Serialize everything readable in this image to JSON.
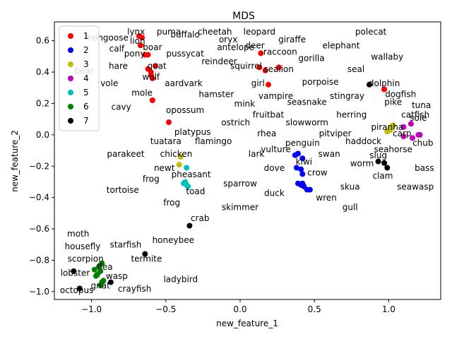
{
  "chart_data": {
    "type": "scatter",
    "title": "MDS",
    "xlabel": "new_feature_1",
    "ylabel": "new_feature_2",
    "xlim": [
      -1.25,
      1.35
    ],
    "ylim": [
      -1.05,
      0.72
    ],
    "xticks": [
      -1.0,
      -0.5,
      0.0,
      0.5,
      1.0
    ],
    "yticks": [
      -1.0,
      -0.8,
      -0.6,
      -0.4,
      -0.2,
      0.0,
      0.2,
      0.4,
      0.6
    ],
    "xtick_labels": [
      "−1.0",
      "−0.5",
      "0.0",
      "0.5",
      "1.0"
    ],
    "ytick_labels": [
      "−1.0",
      "−0.8",
      "−0.6",
      "−0.4",
      "−0.2",
      "0.0",
      "0.2",
      "0.4",
      "0.6"
    ],
    "grid": false,
    "legend_position": "top-left",
    "series": [
      {
        "name": "1",
        "color": "#ff0000",
        "points": [
          [
            -0.68,
            0.63
          ],
          [
            -0.67,
            0.57
          ],
          [
            -0.62,
            0.51
          ],
          [
            -0.57,
            0.44
          ],
          [
            -0.62,
            0.42
          ],
          [
            -0.6,
            0.4
          ],
          [
            -0.59,
            0.36
          ],
          [
            -0.59,
            0.22
          ],
          [
            -0.48,
            0.08
          ],
          [
            0.13,
            0.43
          ],
          [
            0.14,
            0.52
          ],
          [
            0.17,
            0.41
          ],
          [
            0.19,
            0.32
          ],
          [
            0.26,
            0.43
          ],
          [
            0.97,
            0.29
          ],
          [
            -0.66,
            0.62
          ],
          [
            -0.6,
            0.38
          ],
          [
            -0.64,
            0.51
          ]
        ]
      },
      {
        "name": "2",
        "color": "#0000ff",
        "points": [
          [
            0.37,
            -0.13
          ],
          [
            0.39,
            -0.12
          ],
          [
            0.42,
            -0.15
          ],
          [
            0.38,
            -0.21
          ],
          [
            0.41,
            -0.22
          ],
          [
            0.42,
            -0.25
          ],
          [
            0.39,
            -0.31
          ],
          [
            0.41,
            -0.32
          ],
          [
            0.43,
            -0.33
          ],
          [
            0.45,
            -0.35
          ],
          [
            0.47,
            -0.35
          ],
          [
            0.42,
            -0.31
          ]
        ]
      },
      {
        "name": "3",
        "color": "#bfbf00",
        "points": [
          [
            0.99,
            0.02
          ],
          [
            1.01,
            0.03
          ],
          [
            1.02,
            0.05
          ],
          [
            1.03,
            0.06
          ],
          [
            -0.41,
            -0.19
          ],
          [
            -0.4,
            -0.14
          ],
          [
            1.01,
            0.04
          ]
        ]
      },
      {
        "name": "4",
        "color": "#bf00bf",
        "points": [
          [
            1.1,
            -0.01
          ],
          [
            1.1,
            0.05
          ],
          [
            1.15,
            0.07
          ],
          [
            1.16,
            -0.02
          ],
          [
            1.2,
            0.0
          ],
          [
            1.21,
            0.0
          ]
        ]
      },
      {
        "name": "5",
        "color": "#00bfbf",
        "points": [
          [
            -0.37,
            -0.3
          ],
          [
            -0.36,
            -0.32
          ],
          [
            -0.35,
            -0.33
          ],
          [
            -0.36,
            -0.21
          ],
          [
            -0.38,
            -0.31
          ]
        ]
      },
      {
        "name": "6",
        "color": "#008000",
        "points": [
          [
            -0.98,
            -0.86
          ],
          [
            -0.97,
            -0.9
          ],
          [
            -0.95,
            -0.84
          ],
          [
            -0.93,
            -0.82
          ],
          [
            -0.94,
            -0.87
          ],
          [
            -0.93,
            -0.94
          ],
          [
            -0.94,
            -0.96
          ],
          [
            -0.96,
            -0.89
          ],
          [
            -0.92,
            -0.93
          ]
        ]
      },
      {
        "name": "7",
        "color": "#000000",
        "points": [
          [
            -1.12,
            -0.87
          ],
          [
            -1.08,
            -0.98
          ],
          [
            -0.87,
            -0.94
          ],
          [
            -0.64,
            -0.76
          ],
          [
            -0.34,
            -0.58
          ],
          [
            0.87,
            0.32
          ],
          [
            0.93,
            -0.17
          ],
          [
            0.97,
            -0.18
          ],
          [
            0.99,
            -0.21
          ]
        ]
      }
    ],
    "annotations": [
      {
        "text": "mongoose",
        "x": -0.9,
        "y": 0.6
      },
      {
        "text": "lynx",
        "x": -0.7,
        "y": 0.64
      },
      {
        "text": "puma",
        "x": -0.48,
        "y": 0.64
      },
      {
        "text": "buffalo",
        "x": -0.37,
        "y": 0.62
      },
      {
        "text": "cheetah",
        "x": -0.17,
        "y": 0.64
      },
      {
        "text": "leopard",
        "x": 0.13,
        "y": 0.64
      },
      {
        "text": "polecat",
        "x": 0.88,
        "y": 0.64
      },
      {
        "text": "lion",
        "x": -0.69,
        "y": 0.58
      },
      {
        "text": "oryx",
        "x": -0.08,
        "y": 0.59
      },
      {
        "text": "giraffe",
        "x": 0.35,
        "y": 0.59
      },
      {
        "text": "calf",
        "x": -0.83,
        "y": 0.53
      },
      {
        "text": "boar",
        "x": -0.59,
        "y": 0.54
      },
      {
        "text": "deer",
        "x": 0.1,
        "y": 0.55
      },
      {
        "text": "antelope",
        "x": -0.03,
        "y": 0.54
      },
      {
        "text": "elephant",
        "x": 0.68,
        "y": 0.55
      },
      {
        "text": "pony",
        "x": -0.71,
        "y": 0.5
      },
      {
        "text": "pussycat",
        "x": -0.37,
        "y": 0.5
      },
      {
        "text": "raccoon",
        "x": 0.27,
        "y": 0.51
      },
      {
        "text": "wallaby",
        "x": 0.99,
        "y": 0.48
      },
      {
        "text": "reindeer",
        "x": -0.14,
        "y": 0.45
      },
      {
        "text": "gorilla",
        "x": 0.48,
        "y": 0.47
      },
      {
        "text": "hare",
        "x": -0.82,
        "y": 0.42
      },
      {
        "text": "goat",
        "x": -0.56,
        "y": 0.42
      },
      {
        "text": "squirrel",
        "x": 0.04,
        "y": 0.42
      },
      {
        "text": "seal",
        "x": 0.78,
        "y": 0.4
      },
      {
        "text": "sealion",
        "x": 0.26,
        "y": 0.4
      },
      {
        "text": "bear",
        "x": -1.05,
        "y": 0.39
      },
      {
        "text": "wolf",
        "x": -0.6,
        "y": 0.35
      },
      {
        "text": "vole",
        "x": -0.88,
        "y": 0.31
      },
      {
        "text": "aardvark",
        "x": -0.38,
        "y": 0.31
      },
      {
        "text": "porpoise",
        "x": 0.54,
        "y": 0.32
      },
      {
        "text": "dolphin",
        "x": 0.97,
        "y": 0.31
      },
      {
        "text": "girl",
        "x": 0.12,
        "y": 0.31
      },
      {
        "text": "mole",
        "x": -0.66,
        "y": 0.25
      },
      {
        "text": "hamster",
        "x": -0.16,
        "y": 0.24
      },
      {
        "text": "vampire",
        "x": 0.24,
        "y": 0.23
      },
      {
        "text": "stingray",
        "x": 0.72,
        "y": 0.23
      },
      {
        "text": "dogfish",
        "x": 1.08,
        "y": 0.24
      },
      {
        "text": "cavy",
        "x": -0.8,
        "y": 0.16
      },
      {
        "text": "mink",
        "x": 0.03,
        "y": 0.18
      },
      {
        "text": "seasnake",
        "x": 0.45,
        "y": 0.19
      },
      {
        "text": "pike",
        "x": 1.03,
        "y": 0.19
      },
      {
        "text": "tuna",
        "x": 1.22,
        "y": 0.17
      },
      {
        "text": "opossum",
        "x": -0.37,
        "y": 0.14
      },
      {
        "text": "fruitbat",
        "x": 0.19,
        "y": 0.11
      },
      {
        "text": "herring",
        "x": 0.75,
        "y": 0.11
      },
      {
        "text": "catfish",
        "x": 1.18,
        "y": 0.11
      },
      {
        "text": "sole",
        "x": 1.2,
        "y": 0.09
      },
      {
        "text": "ostrich",
        "x": -0.03,
        "y": 0.06
      },
      {
        "text": "slowworm",
        "x": 0.45,
        "y": 0.06
      },
      {
        "text": "piranha",
        "x": 0.99,
        "y": 0.03
      },
      {
        "text": "platypus",
        "x": -0.32,
        "y": 0.0
      },
      {
        "text": "rhea",
        "x": 0.18,
        "y": -0.01
      },
      {
        "text": "pitviper",
        "x": 0.64,
        "y": -0.01
      },
      {
        "text": "tuatara",
        "x": -0.5,
        "y": -0.06
      },
      {
        "text": "flamingo",
        "x": -0.18,
        "y": -0.06
      },
      {
        "text": "penguin",
        "x": 0.42,
        "y": -0.07
      },
      {
        "text": "haddock",
        "x": 0.83,
        "y": -0.06
      },
      {
        "text": "carp",
        "x": 1.09,
        "y": -0.01
      },
      {
        "text": "chub",
        "x": 1.23,
        "y": -0.07
      },
      {
        "text": "vulture",
        "x": 0.24,
        "y": -0.11
      },
      {
        "text": "seahorse",
        "x": 1.03,
        "y": -0.11
      },
      {
        "text": "parakeet",
        "x": -0.77,
        "y": -0.14
      },
      {
        "text": "chicken",
        "x": -0.43,
        "y": -0.14
      },
      {
        "text": "lark",
        "x": 0.11,
        "y": -0.14
      },
      {
        "text": "swan",
        "x": 0.6,
        "y": -0.14
      },
      {
        "text": "slug",
        "x": 0.93,
        "y": -0.15
      },
      {
        "text": "kiwi",
        "x": 0.43,
        "y": -0.19
      },
      {
        "text": "worm",
        "x": 0.82,
        "y": -0.2
      },
      {
        "text": "newt",
        "x": -0.51,
        "y": -0.23
      },
      {
        "text": "dove",
        "x": 0.23,
        "y": -0.23
      },
      {
        "text": "bass",
        "x": 1.24,
        "y": -0.23
      },
      {
        "text": "pheasant",
        "x": -0.33,
        "y": -0.27
      },
      {
        "text": "crow",
        "x": 0.52,
        "y": -0.26
      },
      {
        "text": "clam",
        "x": 0.96,
        "y": -0.28
      },
      {
        "text": "frog",
        "x": -0.6,
        "y": -0.3
      },
      {
        "text": "sparrow",
        "x": 0.0,
        "y": -0.33
      },
      {
        "text": "skua",
        "x": 0.74,
        "y": -0.35
      },
      {
        "text": "seawasp",
        "x": 1.18,
        "y": -0.35
      },
      {
        "text": "tortoise",
        "x": -0.79,
        "y": -0.37
      },
      {
        "text": "toad",
        "x": -0.3,
        "y": -0.38
      },
      {
        "text": "duck",
        "x": 0.23,
        "y": -0.39
      },
      {
        "text": "wren",
        "x": 0.58,
        "y": -0.42
      },
      {
        "text": "frog",
        "x": -0.46,
        "y": -0.45
      },
      {
        "text": "skimmer",
        "x": 0.0,
        "y": -0.48
      },
      {
        "text": "gull",
        "x": 0.74,
        "y": -0.48
      },
      {
        "text": "crab",
        "x": -0.27,
        "y": -0.55
      },
      {
        "text": "moth",
        "x": -1.09,
        "y": -0.65
      },
      {
        "text": "honeybee",
        "x": -0.45,
        "y": -0.69
      },
      {
        "text": "housefly",
        "x": -1.06,
        "y": -0.73
      },
      {
        "text": "starfish",
        "x": -0.77,
        "y": -0.72
      },
      {
        "text": "scorpion",
        "x": -1.04,
        "y": -0.81
      },
      {
        "text": "termite",
        "x": -0.63,
        "y": -0.81
      },
      {
        "text": "flea",
        "x": -0.91,
        "y": -0.86
      },
      {
        "text": "lobster",
        "x": -1.11,
        "y": -0.9
      },
      {
        "text": "wasp",
        "x": -0.83,
        "y": -0.92
      },
      {
        "text": "ladybird",
        "x": -0.4,
        "y": -0.94
      },
      {
        "text": "gnat",
        "x": -0.94,
        "y": -0.98
      },
      {
        "text": "octopus",
        "x": -1.1,
        "y": -1.01
      },
      {
        "text": "crayfish",
        "x": -0.71,
        "y": -1.0
      }
    ]
  }
}
